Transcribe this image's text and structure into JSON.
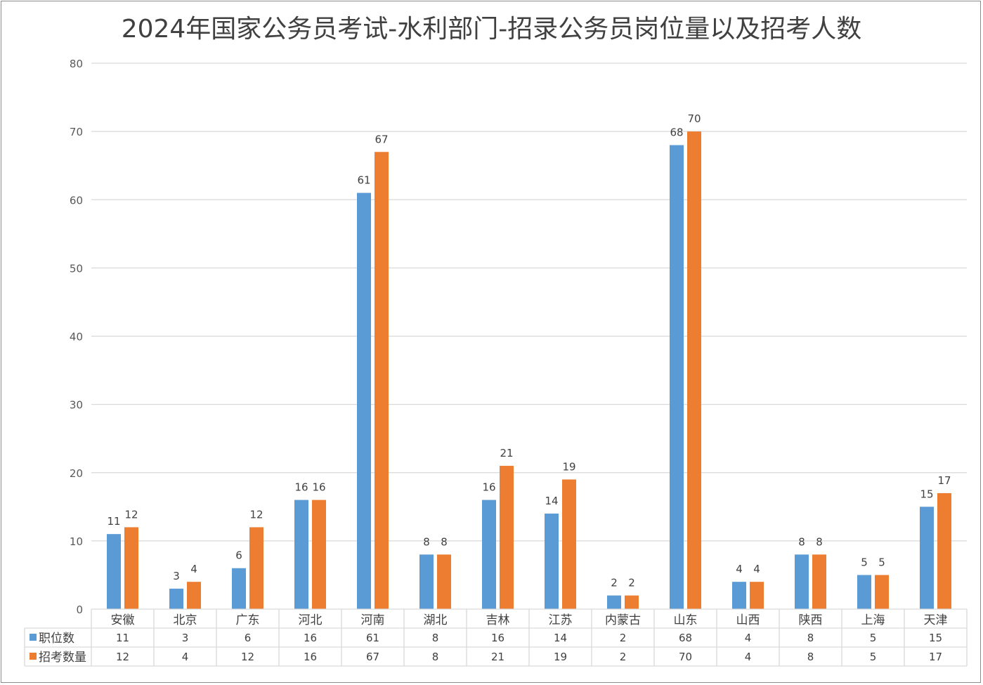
{
  "chart_data": {
    "type": "bar",
    "title": "2024年国家公务员考试-水利部门-招录公务员岗位量以及招考人数",
    "categories": [
      "安徽",
      "北京",
      "广东",
      "河北",
      "河南",
      "湖北",
      "吉林",
      "江苏",
      "内蒙古",
      "山东",
      "山西",
      "陕西",
      "上海",
      "天津"
    ],
    "series": [
      {
        "name": "职位数",
        "color": "#5b9bd5",
        "values": [
          11,
          3,
          6,
          16,
          61,
          8,
          16,
          14,
          2,
          68,
          4,
          8,
          5,
          15
        ]
      },
      {
        "name": "招考数量",
        "color": "#ed7d31",
        "values": [
          12,
          4,
          12,
          16,
          67,
          8,
          21,
          19,
          2,
          70,
          4,
          8,
          5,
          17
        ]
      }
    ],
    "ylim": [
      0,
      80
    ],
    "yticks": [
      0,
      10,
      20,
      30,
      40,
      50,
      60,
      70,
      80
    ],
    "grid": true,
    "data_labels": true,
    "legend": "data-table"
  }
}
